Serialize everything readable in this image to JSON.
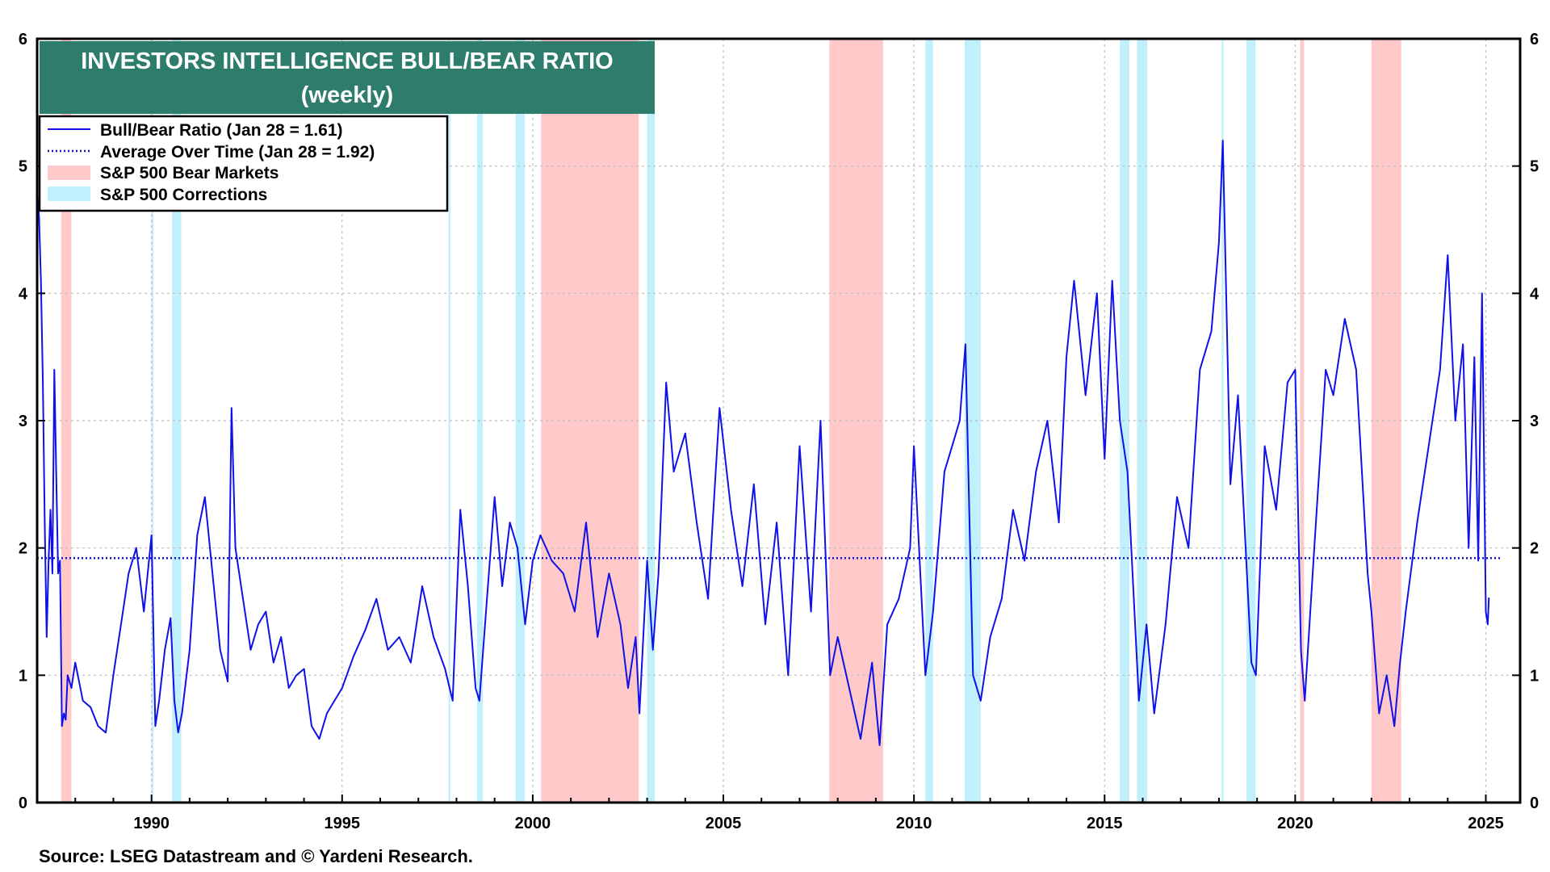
{
  "colors": {
    "ratio_line": "#1010e8",
    "average_line": "#1414d0",
    "bear_band": "#ffc9c9",
    "correction_band": "#bff0fb",
    "title_bg": "#2e7d6c",
    "grid": "#bdbdbd"
  },
  "source": "Source: LSEG Datastream and © Yardeni Research.",
  "chart_data": {
    "type": "line",
    "title": "INVESTORS INTELLIGENCE BULL/BEAR RATIO",
    "subtitle": "(weekly)",
    "xlabel": "",
    "ylabel": "",
    "xlim": [
      1987.0,
      2025.9
    ],
    "ylim": [
      0,
      6
    ],
    "x_ticks": [
      1990,
      1995,
      2000,
      2005,
      2010,
      2015,
      2020,
      2025
    ],
    "y_ticks": [
      0,
      1,
      2,
      3,
      4,
      5,
      6
    ],
    "grid": true,
    "legend": {
      "position": "top-left",
      "entries": [
        "Bull/Bear Ratio (Jan 28 = 1.61)",
        "Average Over Time (Jan 28 = 1.92)",
        "S&P 500 Bear Markets",
        "S&P 500 Corrections"
      ]
    },
    "average": 1.92,
    "bear_markets": [
      [
        1987.63,
        1987.9
      ],
      [
        2000.22,
        2002.78
      ],
      [
        2007.78,
        2009.19
      ],
      [
        2020.13,
        2020.23
      ],
      [
        2022.0,
        2022.78
      ]
    ],
    "corrections": [
      [
        1990.0,
        1990.05
      ],
      [
        1990.54,
        1990.78
      ],
      [
        1997.79,
        1997.84
      ],
      [
        1998.54,
        1998.69
      ],
      [
        1999.55,
        1999.79
      ],
      [
        2003.0,
        2003.2
      ],
      [
        2010.3,
        2010.5
      ],
      [
        2011.33,
        2011.75
      ],
      [
        2015.4,
        2015.65
      ],
      [
        2015.85,
        2016.12
      ],
      [
        2018.07,
        2018.12
      ],
      [
        2018.72,
        2018.96
      ]
    ],
    "series": [
      {
        "name": "Bull/Bear Ratio",
        "x": [
          1987.0,
          1987.05,
          1987.1,
          1987.15,
          1987.2,
          1987.25,
          1987.3,
          1987.35,
          1987.4,
          1987.45,
          1987.5,
          1987.55,
          1987.6,
          1987.65,
          1987.7,
          1987.75,
          1987.8,
          1987.9,
          1988.0,
          1988.2,
          1988.4,
          1988.6,
          1988.8,
          1989.0,
          1989.2,
          1989.4,
          1989.6,
          1989.8,
          1990.0,
          1990.1,
          1990.2,
          1990.35,
          1990.5,
          1990.6,
          1990.7,
          1990.8,
          1991.0,
          1991.2,
          1991.4,
          1991.6,
          1991.8,
          1992.0,
          1992.1,
          1992.2,
          1992.4,
          1992.6,
          1992.8,
          1993.0,
          1993.2,
          1993.4,
          1993.6,
          1993.8,
          1994.0,
          1994.2,
          1994.4,
          1994.6,
          1994.8,
          1995.0,
          1995.3,
          1995.6,
          1995.9,
          1996.2,
          1996.5,
          1996.8,
          1997.1,
          1997.4,
          1997.7,
          1997.9,
          1998.1,
          1998.3,
          1998.5,
          1998.6,
          1998.8,
          1999.0,
          1999.2,
          1999.4,
          1999.6,
          1999.8,
          2000.0,
          2000.2,
          2000.5,
          2000.8,
          2001.1,
          2001.4,
          2001.7,
          2002.0,
          2002.3,
          2002.5,
          2002.7,
          2002.8,
          2003.0,
          2003.15,
          2003.3,
          2003.5,
          2003.7,
          2004.0,
          2004.3,
          2004.6,
          2004.9,
          2005.2,
          2005.5,
          2005.8,
          2006.1,
          2006.4,
          2006.7,
          2007.0,
          2007.3,
          2007.55,
          2007.8,
          2008.0,
          2008.3,
          2008.6,
          2008.9,
          2009.1,
          2009.3,
          2009.6,
          2009.9,
          2010.0,
          2010.3,
          2010.5,
          2010.8,
          2011.0,
          2011.2,
          2011.35,
          2011.55,
          2011.75,
          2012.0,
          2012.3,
          2012.6,
          2012.9,
          2013.2,
          2013.5,
          2013.8,
          2014.0,
          2014.2,
          2014.5,
          2014.8,
          2015.0,
          2015.2,
          2015.4,
          2015.6,
          2015.75,
          2015.9,
          2016.1,
          2016.3,
          2016.6,
          2016.9,
          2017.2,
          2017.5,
          2017.8,
          2018.0,
          2018.1,
          2018.3,
          2018.5,
          2018.7,
          2018.85,
          2018.97,
          2019.2,
          2019.5,
          2019.8,
          2020.0,
          2020.15,
          2020.25,
          2020.5,
          2020.8,
          2021.0,
          2021.3,
          2021.6,
          2021.9,
          2022.0,
          2022.2,
          2022.4,
          2022.6,
          2022.75,
          2022.9,
          2023.2,
          2023.5,
          2023.8,
          2024.0,
          2024.2,
          2024.4,
          2024.55,
          2024.7,
          2024.8,
          2024.9,
          2025.0,
          2025.05,
          2025.08
        ],
        "values": [
          4.8,
          4.6,
          4.1,
          3.3,
          2.2,
          1.3,
          1.9,
          2.3,
          1.8,
          3.4,
          2.6,
          1.8,
          1.9,
          0.6,
          0.7,
          0.65,
          1.0,
          0.9,
          1.1,
          0.8,
          0.75,
          0.6,
          0.55,
          1.0,
          1.4,
          1.8,
          2.0,
          1.5,
          2.1,
          0.6,
          0.8,
          1.2,
          1.45,
          0.8,
          0.55,
          0.7,
          1.2,
          2.1,
          2.4,
          1.8,
          1.2,
          0.95,
          3.1,
          2.0,
          1.6,
          1.2,
          1.4,
          1.5,
          1.1,
          1.3,
          0.9,
          1.0,
          1.05,
          0.6,
          0.5,
          0.7,
          0.8,
          0.9,
          1.15,
          1.35,
          1.6,
          1.2,
          1.3,
          1.1,
          1.7,
          1.3,
          1.05,
          0.8,
          2.3,
          1.7,
          0.9,
          0.8,
          1.6,
          2.4,
          1.7,
          2.2,
          2.0,
          1.4,
          1.9,
          2.1,
          1.9,
          1.8,
          1.5,
          2.2,
          1.3,
          1.8,
          1.4,
          0.9,
          1.3,
          0.7,
          1.9,
          1.2,
          1.8,
          3.3,
          2.6,
          2.9,
          2.2,
          1.6,
          3.1,
          2.3,
          1.7,
          2.5,
          1.4,
          2.2,
          1.0,
          2.8,
          1.5,
          3.0,
          1.0,
          1.3,
          0.9,
          0.5,
          1.1,
          0.45,
          1.4,
          1.6,
          2.0,
          2.8,
          1.0,
          1.5,
          2.6,
          2.8,
          3.0,
          3.6,
          1.0,
          0.8,
          1.3,
          1.6,
          2.3,
          1.9,
          2.6,
          3.0,
          2.2,
          3.5,
          4.1,
          3.2,
          4.0,
          2.7,
          4.1,
          3.0,
          2.6,
          1.7,
          0.8,
          1.4,
          0.7,
          1.4,
          2.4,
          2.0,
          3.4,
          3.7,
          4.4,
          5.2,
          2.5,
          3.2,
          2.0,
          1.1,
          1.0,
          2.8,
          2.3,
          3.3,
          3.4,
          1.2,
          0.8,
          2.0,
          3.4,
          3.2,
          3.8,
          3.4,
          1.8,
          1.5,
          0.7,
          1.0,
          0.6,
          1.1,
          1.5,
          2.2,
          2.8,
          3.4,
          4.3,
          3.0,
          3.6,
          2.0,
          3.5,
          1.9,
          4.0,
          1.5,
          1.4,
          1.61
        ]
      },
      {
        "name": "Average Over Time",
        "values": [
          1.92
        ]
      }
    ]
  }
}
